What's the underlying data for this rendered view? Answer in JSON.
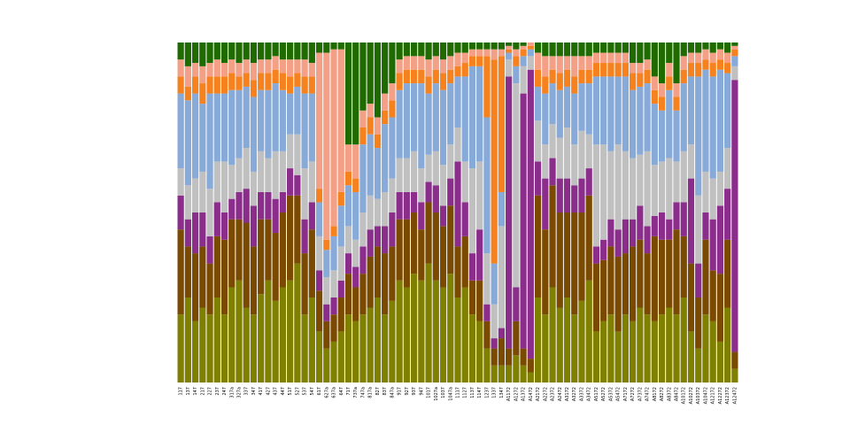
{
  "chart_data": {
    "type": "stacked_bar",
    "categories": [
      "117",
      "137",
      "147",
      "217",
      "227",
      "237",
      "247",
      "317a",
      "327a",
      "337",
      "347",
      "417",
      "427",
      "437",
      "447",
      "517",
      "527",
      "537",
      "547",
      "617",
      "627a",
      "637a",
      "647",
      "717",
      "737a",
      "747a",
      "817a",
      "827",
      "837",
      "847a",
      "917",
      "927",
      "937",
      "947",
      "1017",
      "1027a",
      "1037",
      "1047a",
      "1117",
      "1127",
      "1137",
      "1147",
      "1237",
      "1337",
      "1347",
      "A1172",
      "A1272",
      "A1372",
      "A1472",
      "A2172",
      "A2272",
      "A2372",
      "A2472",
      "A3172",
      "A3272",
      "A3372",
      "A3472",
      "A5172",
      "A5272",
      "A5372",
      "A5472",
      "A7172",
      "A7272",
      "A7372",
      "A7472",
      "A8172",
      "A8272",
      "A8372",
      "A8472",
      "A10172",
      "A10272",
      "A10372",
      "A10472",
      "A12172",
      "A12272",
      "A12372",
      "A12472"
    ],
    "ylim": [
      0,
      100
    ],
    "series": [
      {
        "color": "#808000",
        "values": [
          20,
          25,
          18,
          22,
          20,
          25,
          20,
          28,
          30,
          22,
          20,
          26,
          30,
          24,
          28,
          30,
          35,
          20,
          25,
          15,
          10,
          12,
          15,
          20,
          18,
          20,
          22,
          25,
          20,
          24,
          30,
          28,
          32,
          30,
          35,
          30,
          28,
          32,
          25,
          28,
          20,
          18,
          10,
          5,
          5,
          5,
          8,
          5,
          3,
          25,
          20,
          28,
          22,
          25,
          20,
          24,
          30,
          15,
          18,
          20,
          15,
          20,
          18,
          22,
          20,
          18,
          20,
          22,
          20,
          25,
          15,
          10,
          20,
          18,
          12,
          22,
          4
        ]
      },
      {
        "color": "#7a4a00",
        "values": [
          25,
          15,
          20,
          18,
          15,
          18,
          22,
          20,
          18,
          25,
          20,
          22,
          18,
          20,
          22,
          25,
          20,
          18,
          20,
          12,
          8,
          8,
          10,
          12,
          10,
          12,
          15,
          15,
          18,
          16,
          18,
          20,
          18,
          15,
          18,
          20,
          18,
          20,
          15,
          15,
          10,
          12,
          8,
          5,
          8,
          5,
          10,
          5,
          4,
          30,
          25,
          30,
          28,
          25,
          30,
          26,
          25,
          20,
          18,
          20,
          22,
          18,
          22,
          20,
          18,
          25,
          22,
          20,
          25,
          18,
          20,
          15,
          22,
          15,
          20,
          20,
          5
        ]
      },
      {
        "color": "#8b2e8b",
        "values": [
          10,
          8,
          12,
          10,
          8,
          10,
          8,
          6,
          8,
          10,
          12,
          8,
          8,
          10,
          6,
          8,
          6,
          10,
          8,
          6,
          5,
          5,
          5,
          6,
          6,
          8,
          8,
          6,
          8,
          10,
          8,
          8,
          6,
          8,
          6,
          8,
          6,
          8,
          25,
          10,
          8,
          15,
          5,
          3,
          3,
          80,
          10,
          75,
          85,
          10,
          15,
          8,
          10,
          10,
          8,
          10,
          8,
          5,
          6,
          8,
          8,
          10,
          8,
          10,
          8,
          6,
          8,
          6,
          8,
          10,
          25,
          10,
          8,
          15,
          20,
          15,
          80
        ]
      },
      {
        "color": "#c0c0c0",
        "values": [
          8,
          10,
          10,
          12,
          14,
          12,
          15,
          10,
          10,
          12,
          10,
          12,
          10,
          14,
          12,
          10,
          12,
          15,
          12,
          10,
          8,
          8,
          10,
          8,
          8,
          10,
          10,
          8,
          10,
          10,
          10,
          10,
          12,
          10,
          8,
          10,
          12,
          10,
          10,
          12,
          25,
          20,
          15,
          10,
          30,
          5,
          60,
          8,
          4,
          12,
          10,
          10,
          12,
          15,
          12,
          14,
          10,
          30,
          28,
          20,
          25,
          20,
          18,
          15,
          22,
          15,
          15,
          18,
          12,
          15,
          10,
          20,
          12,
          12,
          10,
          12,
          4
        ]
      },
      {
        "color": "#87aad8",
        "values": [
          22,
          25,
          25,
          20,
          28,
          20,
          20,
          22,
          20,
          18,
          22,
          18,
          20,
          20,
          18,
          12,
          14,
          22,
          20,
          10,
          8,
          10,
          12,
          12,
          14,
          20,
          18,
          15,
          20,
          18,
          20,
          22,
          20,
          25,
          18,
          20,
          22,
          18,
          15,
          25,
          30,
          28,
          40,
          12,
          10,
          2,
          5,
          3,
          2,
          10,
          15,
          12,
          14,
          12,
          15,
          14,
          15,
          20,
          20,
          22,
          20,
          22,
          20,
          20,
          20,
          18,
          15,
          20,
          15,
          20,
          20,
          35,
          30,
          30,
          30,
          22,
          3
        ]
      },
      {
        "color": "#f5821f",
        "values": [
          5,
          4,
          5,
          6,
          5,
          5,
          5,
          5,
          4,
          4,
          5,
          5,
          5,
          4,
          5,
          5,
          4,
          5,
          5,
          4,
          3,
          3,
          4,
          4,
          4,
          5,
          5,
          4,
          4,
          5,
          5,
          4,
          4,
          4,
          5,
          4,
          5,
          4,
          3,
          4,
          3,
          3,
          18,
          60,
          40,
          1,
          3,
          2,
          1,
          5,
          5,
          4,
          5,
          5,
          5,
          4,
          4,
          4,
          4,
          4,
          4,
          4,
          5,
          4,
          4,
          4,
          4,
          4,
          4,
          4,
          4,
          4,
          3,
          4,
          3,
          3,
          2
        ]
      },
      {
        "color": "#f4a086",
        "values": [
          5,
          6,
          4,
          5,
          4,
          5,
          4,
          4,
          4,
          4,
          5,
          4,
          4,
          4,
          4,
          5,
          4,
          5,
          4,
          40,
          55,
          52,
          42,
          8,
          10,
          5,
          4,
          5,
          5,
          5,
          4,
          4,
          4,
          4,
          5,
          4,
          4,
          4,
          4,
          3,
          2,
          2,
          2,
          3,
          2,
          1,
          2,
          1,
          1,
          5,
          6,
          4,
          5,
          4,
          6,
          4,
          4,
          3,
          3,
          3,
          3,
          3,
          3,
          3,
          3,
          4,
          4,
          4,
          4,
          4,
          3,
          3,
          3,
          3,
          3,
          3,
          1
        ]
      },
      {
        "color": "#1f6b00",
        "values": [
          5,
          7,
          6,
          7,
          6,
          5,
          6,
          5,
          6,
          5,
          6,
          5,
          5,
          4,
          5,
          5,
          5,
          5,
          6,
          3,
          3,
          2,
          2,
          30,
          30,
          20,
          18,
          22,
          15,
          12,
          5,
          4,
          4,
          4,
          5,
          4,
          5,
          4,
          3,
          3,
          2,
          2,
          2,
          2,
          2,
          1,
          2,
          1,
          0,
          3,
          4,
          4,
          4,
          4,
          4,
          4,
          4,
          3,
          3,
          3,
          3,
          3,
          6,
          6,
          5,
          10,
          12,
          6,
          12,
          4,
          3,
          3,
          2,
          3,
          2,
          3,
          1
        ]
      }
    ]
  }
}
